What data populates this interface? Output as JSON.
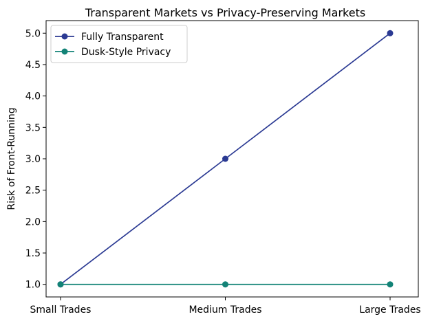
{
  "chart_data": {
    "type": "line",
    "title": "Transparent Markets vs Privacy-Preserving Markets",
    "xlabel": "",
    "ylabel": "Risk of Front-Running",
    "categories": [
      "Small Trades",
      "Medium Trades",
      "Large Trades"
    ],
    "series": [
      {
        "name": "Fully Transparent",
        "values": [
          1.0,
          3.0,
          5.0
        ],
        "color": "#2b3a93"
      },
      {
        "name": "Dusk-Style Privacy",
        "values": [
          1.0,
          1.0,
          1.0
        ],
        "color": "#138377"
      }
    ],
    "ylim": [
      0.8,
      5.2
    ],
    "yticks": [
      "1.0",
      "1.5",
      "2.0",
      "2.5",
      "3.0",
      "3.5",
      "4.0",
      "4.5",
      "5.0"
    ],
    "grid": false,
    "legend_position": "upper-left"
  }
}
